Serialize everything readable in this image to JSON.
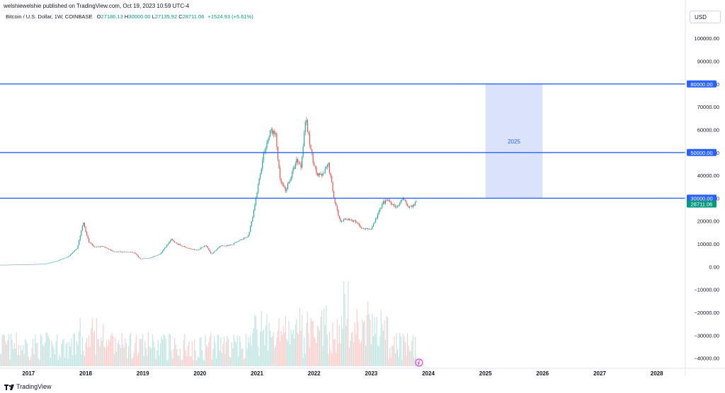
{
  "header": {
    "publish_line": "welshiewelshie published on TradingView.com, Oct 19, 2023 10:59 UTC-4",
    "symbol_line": "Bitcoin / U.S. Dollar, 1W, COINBASE",
    "ohlc": [
      {
        "label": "O",
        "value": "27186.13"
      },
      {
        "label": "H",
        "value": "30000.00"
      },
      {
        "label": "L",
        "value": "27135.92"
      },
      {
        "label": "C",
        "value": "28711.06"
      }
    ],
    "change": "+1524.93 (+5.61%)",
    "currency": "USD"
  },
  "footer": {
    "brand": "TradingView"
  },
  "colors": {
    "up": "#26a69a",
    "down": "#ef5350",
    "hline": "#2962ff",
    "range_fill": "#dbe3fc",
    "price_label": "#089981",
    "axis_text": "#131722"
  },
  "chart_data": {
    "type": "candlestick",
    "title": "Bitcoin / U.S. Dollar, 1W, COINBASE",
    "x_ticks": [
      "2017",
      "2018",
      "2019",
      "2020",
      "2021",
      "2022",
      "2023",
      "2024",
      "2025",
      "2026",
      "2027",
      "2028"
    ],
    "xlim": [
      2016.5,
      2028.5
    ],
    "y_ticks": [
      {
        "value": 100000,
        "label": "100000.00"
      },
      {
        "value": 90000,
        "label": "90000.00"
      },
      {
        "value": 80000,
        "label": "80000.00"
      },
      {
        "value": 70000,
        "label": "70000.00"
      },
      {
        "value": 60000,
        "label": "60000.00"
      },
      {
        "value": 50000,
        "label": "50000.00"
      },
      {
        "value": 40000,
        "label": "40000.00"
      },
      {
        "value": 30000,
        "label": "30000.00"
      },
      {
        "value": 20000,
        "label": "20000.00"
      },
      {
        "value": 10000,
        "label": "10000.00"
      },
      {
        "value": 0,
        "label": "0.00"
      },
      {
        "value": -10000,
        "label": "−10000.00"
      },
      {
        "value": -20000,
        "label": "−20000.00"
      },
      {
        "value": -30000,
        "label": "−30000.00"
      },
      {
        "value": -40000,
        "label": "−40000.00"
      }
    ],
    "ylim": [
      -43500,
      105000
    ],
    "horizontal_lines": [
      {
        "value": 80000,
        "label": "80000.00"
      },
      {
        "value": 50000,
        "label": "50000.00"
      },
      {
        "value": 30000,
        "label": "30000.00"
      }
    ],
    "last_price": {
      "value": 28711.06,
      "label": "28711.06"
    },
    "range_box": {
      "label": "2025",
      "x_start": 2025.0,
      "x_end": 2026.0,
      "y_low": 30000,
      "y_high": 80000
    },
    "price_path": [
      [
        2016.0,
        1000
      ],
      [
        2016.5,
        800
      ],
      [
        2017.0,
        1000
      ],
      [
        2017.3,
        1300
      ],
      [
        2017.5,
        2500
      ],
      [
        2017.7,
        4500
      ],
      [
        2017.85,
        8000
      ],
      [
        2017.96,
        19500
      ],
      [
        2018.05,
        11000
      ],
      [
        2018.15,
        8500
      ],
      [
        2018.3,
        9000
      ],
      [
        2018.5,
        6500
      ],
      [
        2018.7,
        6500
      ],
      [
        2018.85,
        6300
      ],
      [
        2018.95,
        3500
      ],
      [
        2019.1,
        3700
      ],
      [
        2019.3,
        5500
      ],
      [
        2019.5,
        12000
      ],
      [
        2019.6,
        10000
      ],
      [
        2019.8,
        8000
      ],
      [
        2019.95,
        7200
      ],
      [
        2020.1,
        9500
      ],
      [
        2020.2,
        5500
      ],
      [
        2020.35,
        9000
      ],
      [
        2020.55,
        9500
      ],
      [
        2020.7,
        11500
      ],
      [
        2020.85,
        13500
      ],
      [
        2020.95,
        25000
      ],
      [
        2021.0,
        33000
      ],
      [
        2021.12,
        50000
      ],
      [
        2021.25,
        60000
      ],
      [
        2021.33,
        57000
      ],
      [
        2021.4,
        38000
      ],
      [
        2021.5,
        33000
      ],
      [
        2021.6,
        40000
      ],
      [
        2021.7,
        47000
      ],
      [
        2021.77,
        44000
      ],
      [
        2021.85,
        65000
      ],
      [
        2021.95,
        50000
      ],
      [
        2022.05,
        40000
      ],
      [
        2022.15,
        40000
      ],
      [
        2022.25,
        45000
      ],
      [
        2022.35,
        30000
      ],
      [
        2022.45,
        20000
      ],
      [
        2022.55,
        21000
      ],
      [
        2022.7,
        20000
      ],
      [
        2022.85,
        16500
      ],
      [
        2023.0,
        16600
      ],
      [
        2023.1,
        22000
      ],
      [
        2023.2,
        28000
      ],
      [
        2023.3,
        29000
      ],
      [
        2023.45,
        26000
      ],
      [
        2023.55,
        30000
      ],
      [
        2023.65,
        26000
      ],
      [
        2023.75,
        27000
      ],
      [
        2023.8,
        28711
      ]
    ]
  }
}
